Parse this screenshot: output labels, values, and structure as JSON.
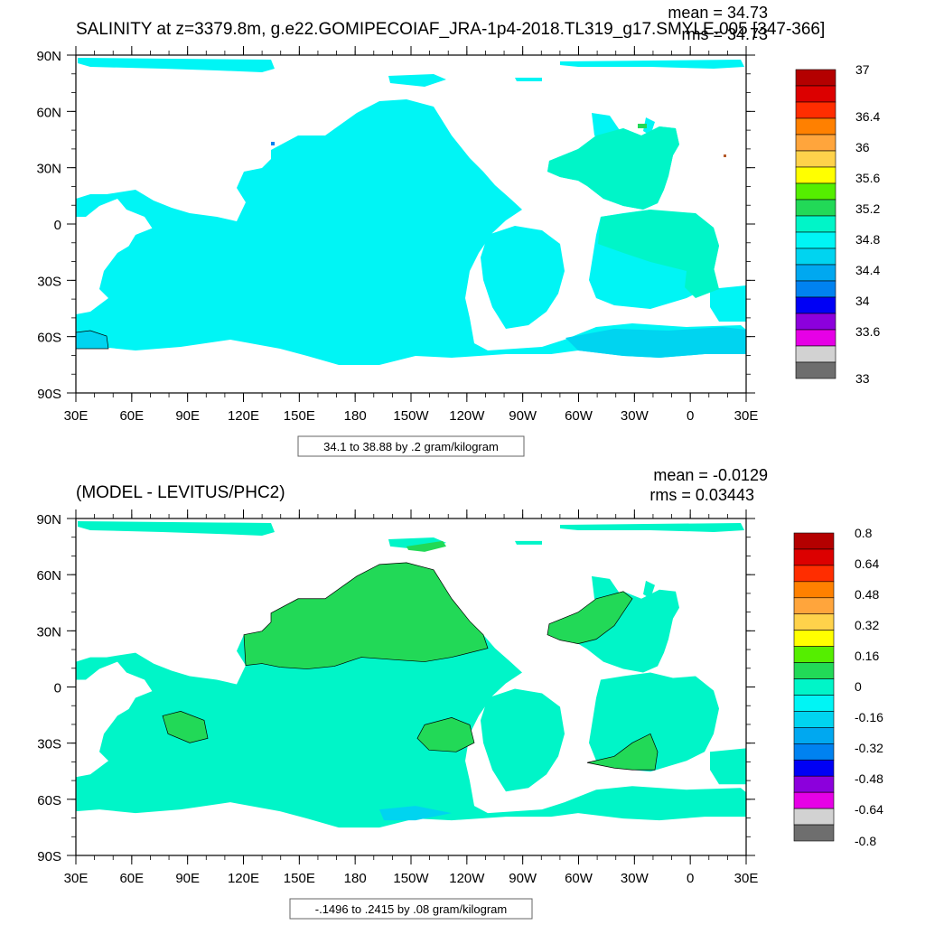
{
  "colors": {
    "background": "#ffffff",
    "land": "#ffffff",
    "frame": "#000000",
    "contour": "#000000"
  },
  "panels": [
    {
      "id": "top",
      "title": "SALINITY at z=3379.8m, g.e22.GOMIPECOIAF_JRA-1p4-2018.TL319_g17.SMYLE.005 [347-366]",
      "stats": [
        "mean = 34.73",
        "rms = 34.73"
      ],
      "lat_labels": [
        "90N",
        "60N",
        "30N",
        "0",
        "30S",
        "60S",
        "90S"
      ],
      "lon_labels": [
        "30E",
        "60E",
        "90E",
        "120E",
        "150E",
        "180",
        "150W",
        "120W",
        "90W",
        "60W",
        "30W",
        "0",
        "30E"
      ],
      "contour_info": "34.1 to 38.88 by .2 gram/kilogram",
      "colorbar": {
        "labels": [
          "37",
          "36.4",
          "36",
          "35.6",
          "35.2",
          "34.8",
          "34.4",
          "34",
          "33.6",
          "33"
        ],
        "colors": [
          "#b40000",
          "#dc0000",
          "#ff2d00",
          "#ff8000",
          "#ffa53c",
          "#ffd24b",
          "#ffff00",
          "#55ee00",
          "#22d957",
          "#00f5c8",
          "#00f5f5",
          "#00d4f0",
          "#00a8f0",
          "#0082f0",
          "#0000f5",
          "#8c00dc",
          "#e600e6",
          "#d2d2d2",
          "#6e6e6e"
        ]
      },
      "field_description": "ocean salinity ~34.8-34.9 g/kg"
    },
    {
      "id": "bottom",
      "title": "(MODEL - LEVITUS/PHC2)",
      "stats": [
        "mean = -0.0129",
        "rms = 0.03443"
      ],
      "lat_labels": [
        "90N",
        "60N",
        "30N",
        "0",
        "30S",
        "60S",
        "90S"
      ],
      "lon_labels": [
        "30E",
        "60E",
        "90E",
        "120E",
        "150E",
        "180",
        "150W",
        "120W",
        "90W",
        "60W",
        "30W",
        "0",
        "30E"
      ],
      "contour_info": "-.1496 to .2415 by .08 gram/kilogram",
      "colorbar": {
        "labels": [
          "0.8",
          "0.64",
          "0.48",
          "0.32",
          "0.16",
          "0",
          "-0.16",
          "-0.32",
          "-0.48",
          "-0.64",
          "-0.8"
        ],
        "colors": [
          "#b40000",
          "#dc0000",
          "#ff2d00",
          "#ff8000",
          "#ffa53c",
          "#ffd24b",
          "#ffff00",
          "#55ee00",
          "#22d957",
          "#00f5c8",
          "#00f5f5",
          "#00d4f0",
          "#00a8f0",
          "#0082f0",
          "#0000f5",
          "#8c00dc",
          "#e600e6",
          "#d2d2d2",
          "#6e6e6e"
        ]
      }
    }
  ]
}
